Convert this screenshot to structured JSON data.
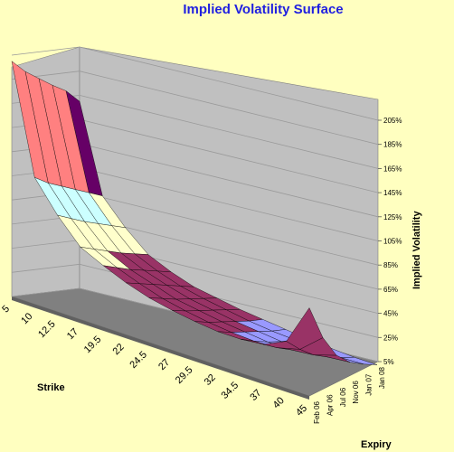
{
  "chart_data": {
    "type": "surface",
    "title": "Implied Volatility Surface",
    "xlabel": "Strike",
    "ylabel": "Expiry",
    "zlabel": "Implied Volatility",
    "strikes": [
      "5",
      "10",
      "12.5",
      "17",
      "19.5",
      "22",
      "24.5",
      "27",
      "29.5",
      "32",
      "34.5",
      "37",
      "40",
      "45"
    ],
    "expiries": [
      "Feb 06",
      "Apr 06",
      "Jul 06",
      "Nov 06",
      "Jan 07",
      "Jan 08"
    ],
    "z_ticks": [
      "5%",
      "25%",
      "45%",
      "65%",
      "85%",
      "105%",
      "125%",
      "145%",
      "165%",
      "185%",
      "205%"
    ],
    "zlim": [
      5,
      205
    ],
    "values": [
      [
        200,
        190,
        183,
        176,
        170,
        160
      ],
      [
        110,
        104,
        100,
        96,
        92,
        88
      ],
      [
        85,
        81,
        77,
        74,
        71,
        68
      ],
      [
        65,
        62,
        59,
        56,
        54,
        52
      ],
      [
        56,
        53,
        50,
        48,
        46,
        44
      ],
      [
        48,
        46,
        44,
        42,
        40,
        38
      ],
      [
        42,
        40,
        38,
        37,
        36,
        35
      ],
      [
        38,
        36,
        35,
        34,
        33,
        32
      ],
      [
        35,
        33,
        32,
        31,
        30,
        30
      ],
      [
        33,
        31,
        30,
        29,
        28,
        28
      ],
      [
        33,
        30,
        28,
        27,
        27,
        26
      ],
      [
        35,
        31,
        28,
        26,
        25,
        25
      ],
      [
        44,
        36,
        30,
        27,
        25,
        24
      ],
      [
        78,
        52,
        36,
        29,
        26,
        24
      ]
    ],
    "band_colors": [
      "#9999ff",
      "#993366",
      "#ffffcc",
      "#ccffff",
      "#660066",
      "#ff8080",
      "#0066cc",
      "#ccccff"
    ],
    "grid": true,
    "legend": "none"
  }
}
